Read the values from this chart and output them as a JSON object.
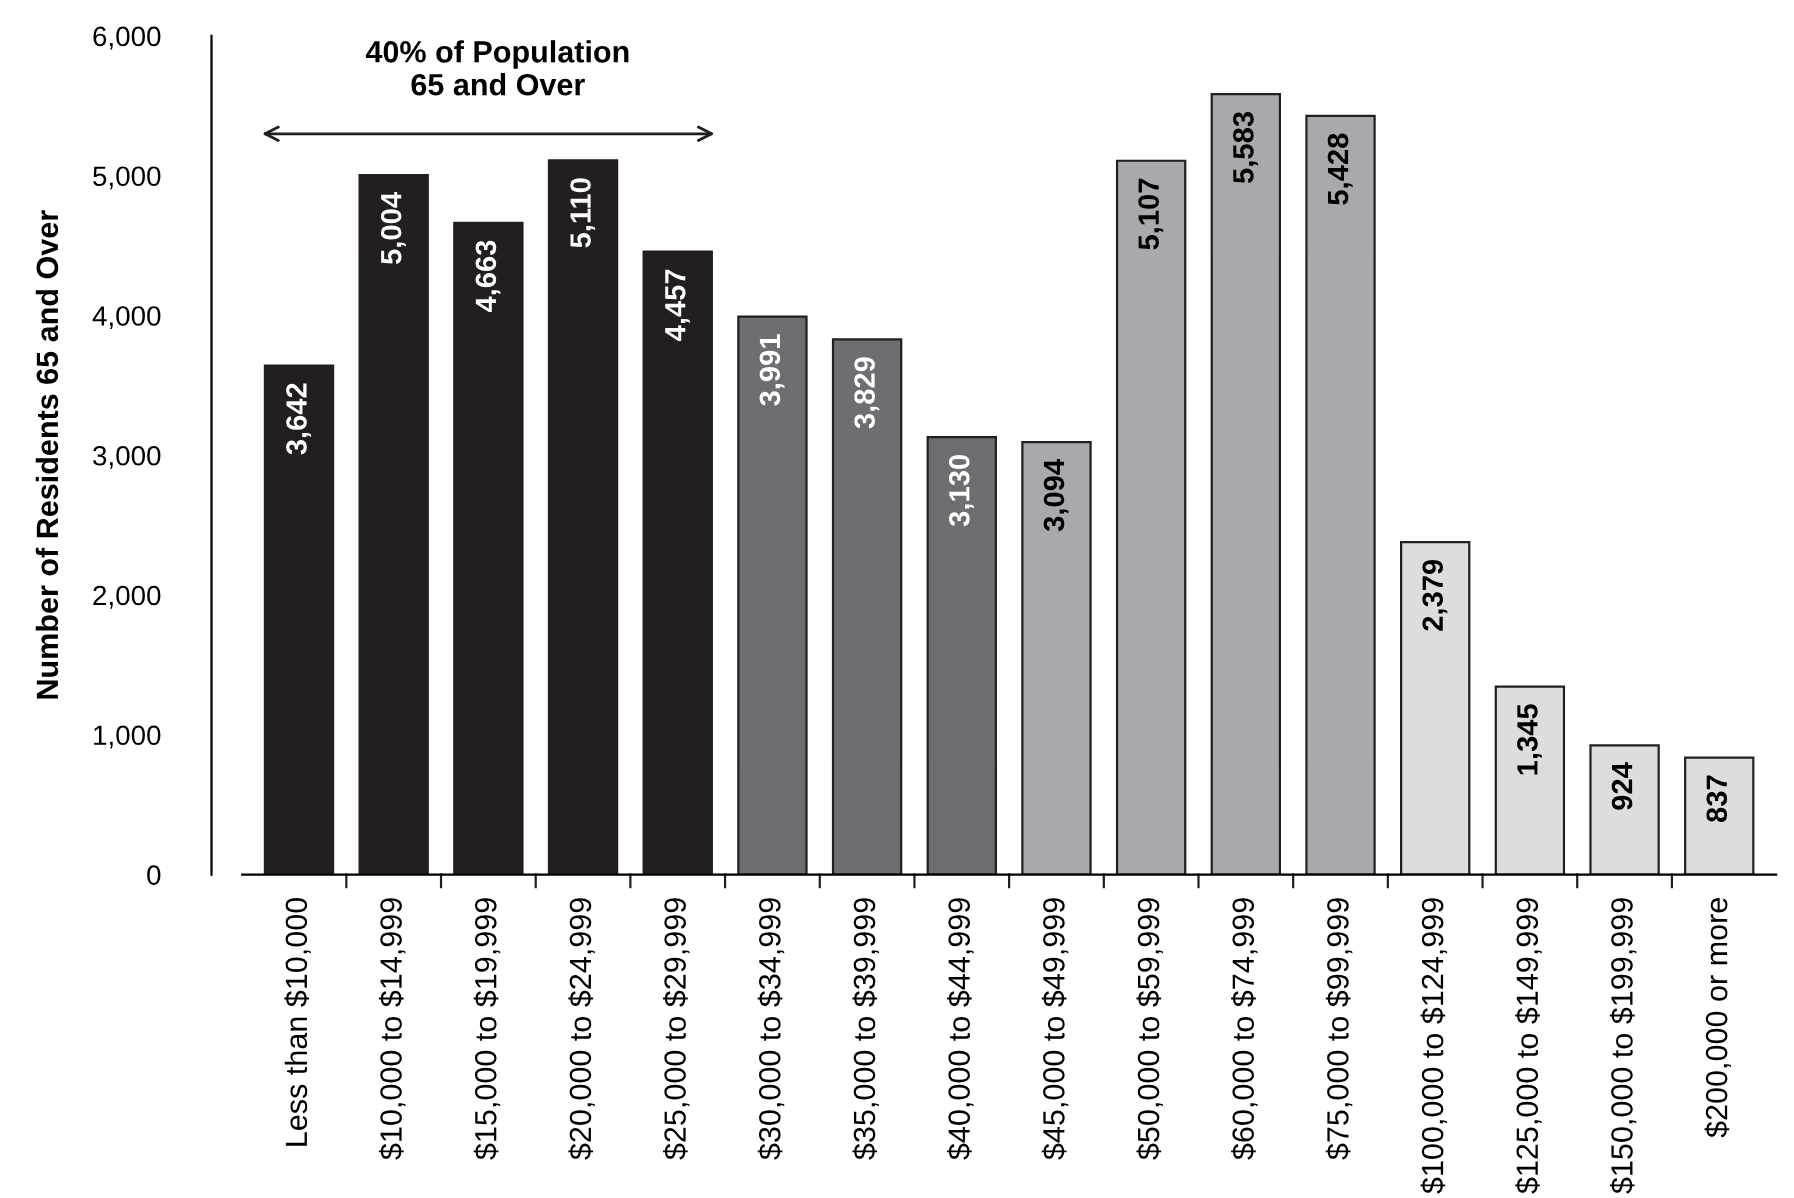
{
  "chart_data": {
    "type": "bar",
    "ylabel": "Number of Residents 65 and Over",
    "categories": [
      "Less than $10,000",
      "$10,000 to $14,999",
      "$15,000 to $19,999",
      "$20,000 to $24,999",
      "$25,000 to $29,999",
      "$30,000 to $34,999",
      "$35,000 to $39,999",
      "$40,000 to $44,999",
      "$45,000 to $49,999",
      "$50,000 to $59,999",
      "$60,000 to $74,999",
      "$75,000 to $99,999",
      "$100,000 to $124,999",
      "$125,000 to $149,999",
      "$150,000 to $199,999",
      "$200,000 or more"
    ],
    "values": [
      3642,
      5004,
      4663,
      5110,
      4457,
      3991,
      3829,
      3130,
      3094,
      5107,
      5583,
      5428,
      2379,
      1345,
      924,
      837
    ],
    "colors": [
      "#231f20",
      "#231f20",
      "#231f20",
      "#231f20",
      "#231f20",
      "#6d6e71",
      "#6d6e71",
      "#6d6e71",
      "#a7a9ac",
      "#a7a9ac",
      "#a7a9ac",
      "#a7a9ac",
      "#dcddde",
      "#dcddde",
      "#dcddde",
      "#dcddde"
    ],
    "value_labels": [
      "3,642",
      "5,004",
      "4,663",
      "5,110",
      "4,457",
      "3,991",
      "3,829",
      "3,130",
      "3,094",
      "5,107",
      "5,583",
      "5,428",
      "2,379",
      "1,345",
      "924",
      "837"
    ],
    "ylim": [
      0,
      6000
    ],
    "yticks": [
      0,
      {
        "value": 1000,
        "label": "1,000"
      },
      {
        "value": 2000,
        "label": "2,000"
      },
      {
        "value": 3000,
        "label": "3,000"
      },
      {
        "value": 4000,
        "label": "4,000"
      },
      {
        "value": 5000,
        "label": "5,000"
      },
      {
        "value": 6000,
        "label": "6,000"
      }
    ],
    "annotations": [
      "40% of Population\n65 and Over"
    ],
    "grid": false,
    "legend": false
  }
}
